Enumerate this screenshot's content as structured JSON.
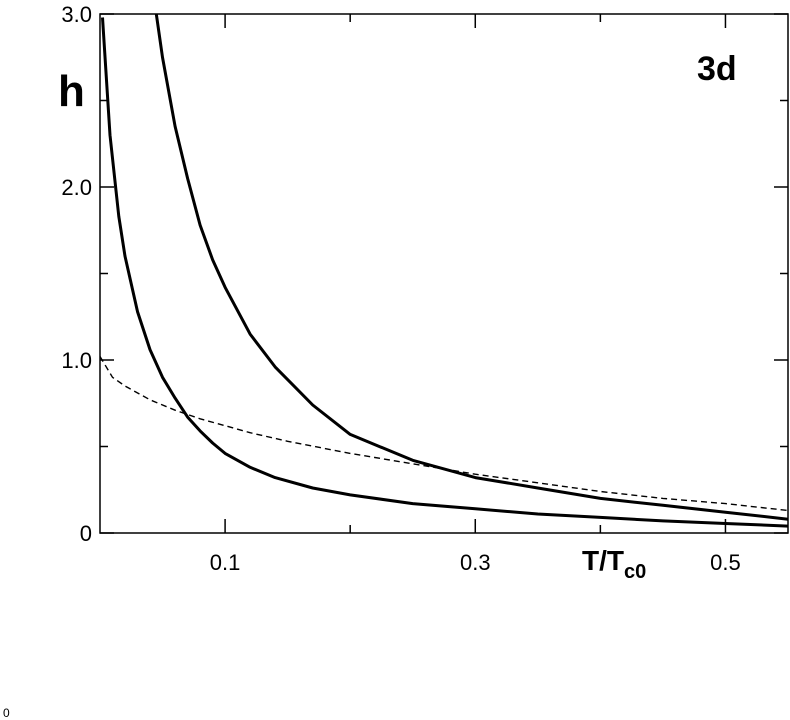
{
  "chart_data": {
    "type": "line",
    "xlabel": {
      "main": "T/T",
      "sub": "c0"
    },
    "ylabel": "h",
    "annotation": "3d",
    "xlim": [
      0,
      0.55
    ],
    "ylim": [
      0,
      3.0
    ],
    "x_ticks": [
      {
        "value": 0.1,
        "label": "0.1"
      },
      {
        "value": 0.3,
        "label": "0.3"
      },
      {
        "value": 0.5,
        "label": "0.5"
      }
    ],
    "x_minor_ticks": [
      0.2,
      0.4
    ],
    "y_ticks": [
      {
        "value": 0,
        "label": "0"
      },
      {
        "value": 1.0,
        "label": "1.0"
      },
      {
        "value": 2.0,
        "label": "2.0"
      },
      {
        "value": 3.0,
        "label": "3.0"
      }
    ],
    "y_minor_ticks": [
      0.5,
      1.5,
      2.5
    ],
    "grid": false,
    "series": [
      {
        "style": "solid",
        "x": [
          0.002,
          0.008,
          0.015,
          0.02,
          0.03,
          0.04,
          0.05,
          0.06,
          0.07,
          0.08,
          0.09,
          0.1,
          0.12,
          0.14,
          0.17,
          0.2,
          0.25,
          0.3,
          0.35,
          0.4,
          0.45,
          0.5,
          0.55
        ],
        "y": [
          2.98,
          2.3,
          1.83,
          1.6,
          1.28,
          1.06,
          0.9,
          0.78,
          0.67,
          0.59,
          0.52,
          0.46,
          0.38,
          0.32,
          0.26,
          0.22,
          0.17,
          0.14,
          0.11,
          0.09,
          0.07,
          0.055,
          0.04
        ]
      },
      {
        "style": "solid",
        "x": [
          0.045,
          0.05,
          0.06,
          0.07,
          0.08,
          0.09,
          0.1,
          0.12,
          0.14,
          0.17,
          0.2,
          0.25,
          0.3,
          0.35,
          0.4,
          0.45,
          0.5,
          0.55
        ],
        "y": [
          3.0,
          2.75,
          2.35,
          2.05,
          1.78,
          1.58,
          1.42,
          1.15,
          0.96,
          0.74,
          0.57,
          0.42,
          0.32,
          0.26,
          0.2,
          0.16,
          0.12,
          0.08
        ]
      },
      {
        "style": "dashed",
        "x": [
          0.0,
          0.01,
          0.02,
          0.04,
          0.06,
          0.08,
          0.1,
          0.12,
          0.15,
          0.2,
          0.25,
          0.3,
          0.35,
          0.4,
          0.45,
          0.5,
          0.55
        ],
        "y": [
          1.02,
          0.9,
          0.85,
          0.77,
          0.71,
          0.66,
          0.62,
          0.58,
          0.53,
          0.46,
          0.4,
          0.34,
          0.29,
          0.24,
          0.2,
          0.17,
          0.13
        ]
      }
    ]
  },
  "stray_glyph": "0"
}
